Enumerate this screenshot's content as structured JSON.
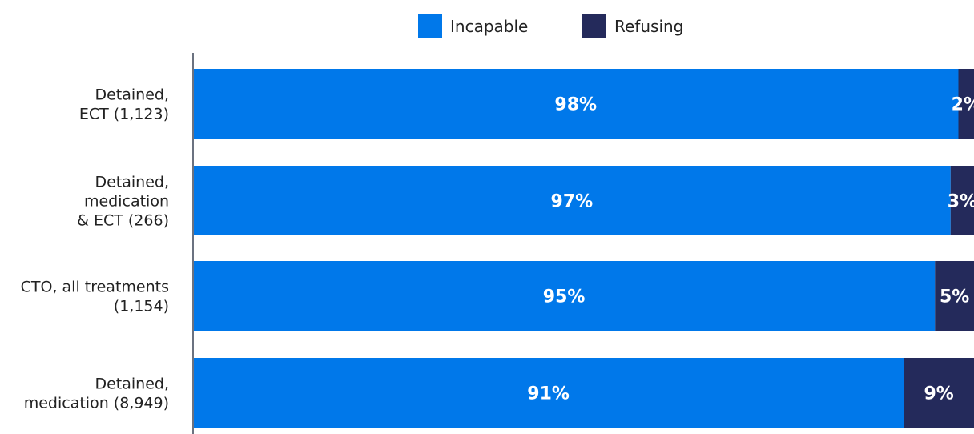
{
  "chart_data": {
    "type": "bar",
    "orientation": "horizontal",
    "stacked": true,
    "categories": [
      [
        "Detained,",
        "ECT (1,123)"
      ],
      [
        "Detained,",
        "medication",
        "& ECT (266)"
      ],
      [
        "CTO, all treatments",
        "(1,154)"
      ],
      [
        "Detained,",
        "medication (8,949)"
      ]
    ],
    "series": [
      {
        "name": "Incapable",
        "values": [
          98,
          97,
          95,
          91
        ],
        "labels": [
          "98%",
          "97%",
          "95%",
          "91%"
        ],
        "color": "#0078ea"
      },
      {
        "name": "Refusing",
        "values": [
          2,
          3,
          5,
          9
        ],
        "labels": [
          "2%",
          "3%",
          "5%",
          "9%"
        ],
        "color": "#242a5b"
      }
    ],
    "xlim": [
      0,
      100
    ],
    "legend_position": "top-center",
    "grid": false
  },
  "colors": {
    "axis": "#6b7280",
    "label_text": "#222222",
    "data_label": "#ffffff"
  }
}
